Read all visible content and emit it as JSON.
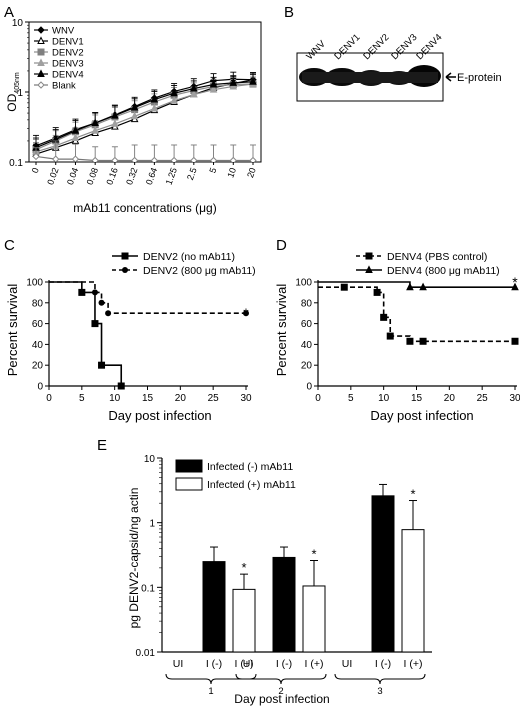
{
  "panel_labels": {
    "A": "A",
    "B": "B",
    "C": "C",
    "D": "D",
    "E": "E"
  },
  "chart_data": [
    {
      "panel": "A",
      "type": "line",
      "ylabel": "OD",
      "ylabel_sub": "405nm",
      "xlabel": "mAb11 concentrations (μg)",
      "categories": [
        "0",
        "0.02",
        "0.04",
        "0.08",
        "0.16",
        "0.32",
        "0.64",
        "1.25",
        "2.5",
        "5",
        "10",
        "20"
      ],
      "y_scale": "log",
      "ylim": [
        0.1,
        10
      ],
      "y_ticks": [
        "0.1",
        "1",
        "10"
      ],
      "legend_position": "top-left",
      "series": [
        {
          "name": "WNV",
          "marker": "diamond-filled",
          "values": [
            0.17,
            0.22,
            0.29,
            0.36,
            0.47,
            0.62,
            0.82,
            1.02,
            1.2,
            1.45,
            1.52,
            1.5
          ],
          "err": [
            0.07,
            0.09,
            0.12,
            0.15,
            0.18,
            0.22,
            0.25,
            0.3,
            0.35,
            0.38,
            0.4,
            0.4
          ]
        },
        {
          "name": "DENV1",
          "marker": "triangle-open",
          "values": [
            0.13,
            0.16,
            0.2,
            0.26,
            0.32,
            0.41,
            0.55,
            0.72,
            0.92,
            1.15,
            1.32,
            1.5
          ],
          "err": [
            0.05,
            0.06,
            0.08,
            0.1,
            0.12,
            0.14,
            0.18,
            0.22,
            0.26,
            0.3,
            0.33,
            0.36
          ]
        },
        {
          "name": "DENV2",
          "marker": "square-gray",
          "values": [
            0.15,
            0.2,
            0.27,
            0.34,
            0.44,
            0.56,
            0.72,
            0.9,
            1.05,
            1.2,
            1.28,
            1.3
          ],
          "err": [
            0.06,
            0.08,
            0.1,
            0.13,
            0.16,
            0.19,
            0.22,
            0.26,
            0.3,
            0.32,
            0.33,
            0.34
          ]
        },
        {
          "name": "DENV3",
          "marker": "triangle-gray",
          "values": [
            0.14,
            0.17,
            0.22,
            0.28,
            0.35,
            0.45,
            0.58,
            0.75,
            0.92,
            1.08,
            1.2,
            1.3
          ],
          "err": [
            0.05,
            0.07,
            0.09,
            0.11,
            0.13,
            0.16,
            0.19,
            0.22,
            0.26,
            0.29,
            0.31,
            0.33
          ]
        },
        {
          "name": "DENV4",
          "marker": "triangle-filled",
          "values": [
            0.16,
            0.21,
            0.28,
            0.36,
            0.46,
            0.6,
            0.78,
            0.96,
            1.12,
            1.28,
            1.35,
            1.4
          ],
          "err": [
            0.06,
            0.08,
            0.11,
            0.14,
            0.17,
            0.2,
            0.24,
            0.28,
            0.32,
            0.34,
            0.36,
            0.37
          ]
        },
        {
          "name": "Blank",
          "marker": "diamond-open",
          "values": [
            0.12,
            0.11,
            0.11,
            0.105,
            0.105,
            0.105,
            0.105,
            0.105,
            0.105,
            0.105,
            0.105,
            0.105
          ],
          "err": [
            0.04,
            0.09,
            0.07,
            0.06,
            0.06,
            0.07,
            0.07,
            0.07,
            0.07,
            0.07,
            0.07,
            0.07
          ]
        }
      ]
    },
    {
      "panel": "C",
      "type": "line",
      "xlabel": "Day post infection",
      "ylabel": "Percent survival",
      "xlim": [
        0,
        30
      ],
      "ylim": [
        0,
        100
      ],
      "x_ticks": [
        0,
        5,
        10,
        15,
        20,
        25,
        30
      ],
      "y_ticks": [
        0,
        20,
        40,
        60,
        80,
        100
      ],
      "annotation": "*",
      "legend_position": "top",
      "series": [
        {
          "name": "DENV2 (no mAb11)",
          "style": "solid",
          "marker": "square",
          "steps": [
            [
              0,
              100
            ],
            [
              5,
              100
            ],
            [
              5,
              90
            ],
            [
              7,
              90
            ],
            [
              7,
              60
            ],
            [
              8,
              60
            ],
            [
              8,
              20
            ],
            [
              11,
              20
            ],
            [
              11,
              0
            ]
          ],
          "markers": [
            [
              5,
              90
            ],
            [
              7,
              60
            ],
            [
              8,
              20
            ],
            [
              11,
              0
            ]
          ]
        },
        {
          "name": "DENV2 (800 μg mAb11)",
          "style": "dashed",
          "marker": "circle",
          "steps": [
            [
              0,
              100
            ],
            [
              7,
              100
            ],
            [
              7,
              90
            ],
            [
              8,
              90
            ],
            [
              8,
              80
            ],
            [
              9,
              80
            ],
            [
              9,
              70
            ],
            [
              30,
              70
            ]
          ],
          "markers": [
            [
              7,
              90
            ],
            [
              8,
              80
            ],
            [
              9,
              70
            ],
            [
              30,
              70
            ]
          ]
        }
      ]
    },
    {
      "panel": "D",
      "type": "line",
      "xlabel": "Day post infection",
      "ylabel": "Percent survival",
      "xlim": [
        0,
        30
      ],
      "ylim": [
        0,
        100
      ],
      "x_ticks": [
        0,
        5,
        10,
        15,
        20,
        25,
        30
      ],
      "y_ticks": [
        0,
        20,
        40,
        60,
        80,
        100
      ],
      "annotation": "*",
      "legend_position": "top",
      "series": [
        {
          "name": "DENV4 (PBS control)",
          "style": "dashed",
          "marker": "square",
          "steps": [
            [
              0,
              95
            ],
            [
              9,
              95
            ],
            [
              9,
              90
            ],
            [
              10,
              90
            ],
            [
              10,
              66
            ],
            [
              11,
              66
            ],
            [
              11,
              48
            ],
            [
              14,
              48
            ],
            [
              14,
              43
            ],
            [
              30,
              43
            ]
          ],
          "markers": [
            [
              4,
              95
            ],
            [
              9,
              90
            ],
            [
              10,
              66
            ],
            [
              11,
              48
            ],
            [
              14,
              43
            ],
            [
              16,
              43
            ],
            [
              30,
              43
            ]
          ]
        },
        {
          "name": "DENV4 (800 μg mAb11)",
          "style": "solid",
          "marker": "triangle",
          "steps": [
            [
              0,
              100
            ],
            [
              14,
              100
            ],
            [
              14,
              95
            ],
            [
              30,
              95
            ]
          ],
          "markers": [
            [
              14,
              95
            ],
            [
              16,
              95
            ],
            [
              30,
              95
            ]
          ]
        }
      ]
    },
    {
      "panel": "E",
      "type": "bar",
      "ylabel": "pg DENV2-capsid/ng actin",
      "xlabel": "Day post infection",
      "y_scale": "log",
      "ylim": [
        0.01,
        10
      ],
      "y_ticks": [
        "0.01",
        "0.1",
        "1",
        "10"
      ],
      "groups": [
        "1",
        "2",
        "3"
      ],
      "categories": [
        "UI",
        "I (-)",
        "I (+)"
      ],
      "legend_position": "top-left",
      "annotation": "*",
      "series": [
        {
          "name": "Infected (-) mAb11",
          "fill": "#000000",
          "values": [
            0.25,
            0.29,
            2.6
          ],
          "err_upper": [
            0.42,
            0.42,
            3.9
          ]
        },
        {
          "name": "Infected (+) mAb11",
          "fill": "#ffffff",
          "values": [
            0.093,
            0.105,
            0.78
          ],
          "err_upper": [
            0.16,
            0.26,
            2.2
          ]
        }
      ]
    }
  ],
  "blot": {
    "lanes": [
      "WNV",
      "DENV1",
      "DENV2",
      "DENV3",
      "DENV4"
    ],
    "band_label": "E-protein"
  }
}
